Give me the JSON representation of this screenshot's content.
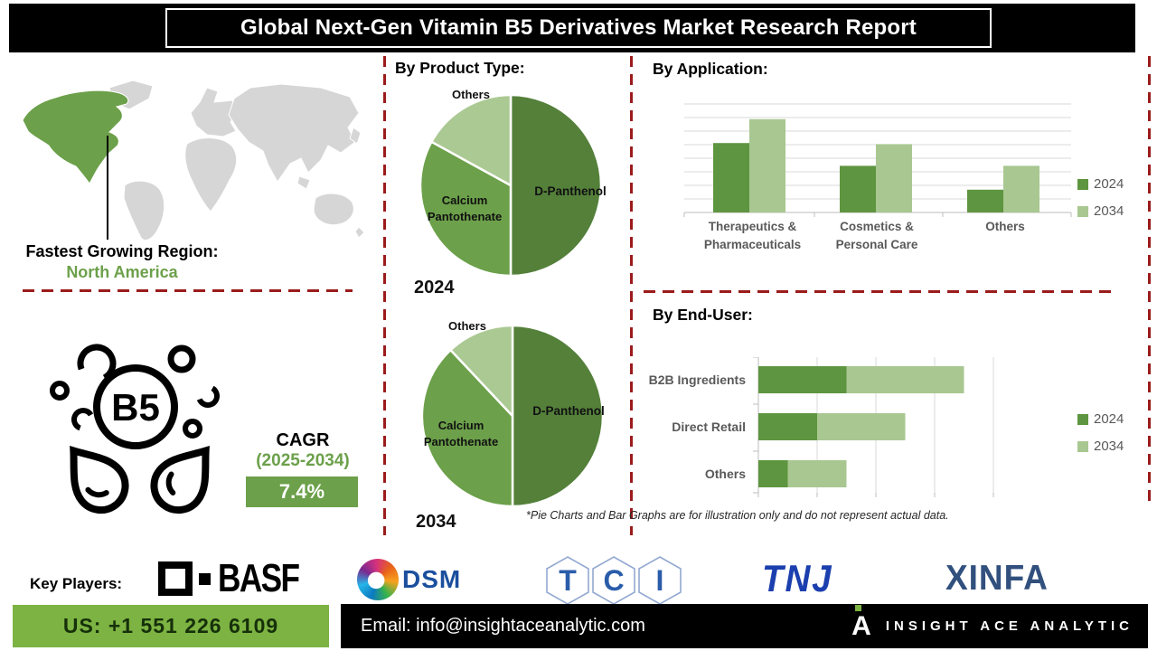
{
  "header": {
    "title": "Global Next-Gen Vitamin B5 Derivatives Market Research Report"
  },
  "map": {
    "icon": "world-map",
    "highlighted_region_color": "#6CA04A",
    "heading": "Fastest Growing Region:",
    "region": "North America"
  },
  "cagr": {
    "icon": "vitamin-b5-molecule-icon",
    "label": "CAGR",
    "period": "(2025-2034)",
    "value": "7.4%"
  },
  "sections": {
    "product_type": "By Product Type:",
    "application": "By Application:",
    "end_user": "By End-User:"
  },
  "chart_data": [
    {
      "id": "product_type_2024",
      "type": "pie",
      "year": "2024",
      "labels": [
        "D-Panthenol",
        "Calcium Pantothenate",
        "Others"
      ],
      "values": [
        50,
        33,
        17
      ],
      "colors": [
        "#54803A",
        "#6CA04A",
        "#ABC993"
      ]
    },
    {
      "id": "product_type_2034",
      "type": "pie",
      "year": "2034",
      "labels": [
        "D-Panthenol",
        "Calcium Pantothenate",
        "Others"
      ],
      "values": [
        50,
        38,
        12
      ],
      "colors": [
        "#54803A",
        "#6CA04A",
        "#ABC993"
      ]
    },
    {
      "id": "application",
      "type": "bar",
      "categories": [
        "Therapeutics & Pharmaceuticals",
        "Cosmetics & Personal Care",
        "Others"
      ],
      "series": [
        {
          "name": "2024",
          "color": "#5E9540",
          "values": [
            64,
            43,
            21
          ]
        },
        {
          "name": "2034",
          "color": "#A9C791",
          "values": [
            86,
            63,
            43
          ]
        }
      ],
      "ylim": [
        0,
        100
      ],
      "grid": true,
      "legend_position": "right"
    },
    {
      "id": "end_user",
      "type": "bar",
      "orientation": "horizontal",
      "stacked": true,
      "categories": [
        "B2B Ingredients",
        "Direct Retail",
        "Others"
      ],
      "series": [
        {
          "name": "2024",
          "color": "#5E9540",
          "values": [
            1.5,
            1.0,
            0.5
          ]
        },
        {
          "name": "2034",
          "color": "#A9C791",
          "values": [
            2.0,
            1.5,
            1.0
          ]
        }
      ],
      "xlim": [
        0,
        4
      ],
      "grid": true,
      "legend_position": "right"
    }
  ],
  "footnote": "*Pie Charts and Bar Graphs are for illustration only and do not represent actual data.",
  "key_players": {
    "label": "Key Players:",
    "companies": [
      {
        "name": "BASF"
      },
      {
        "name": "DSM"
      },
      {
        "name": "TCI",
        "letters": [
          "T",
          "C",
          "I"
        ]
      },
      {
        "name": "TNJ"
      },
      {
        "name": "XINFA"
      }
    ]
  },
  "footer": {
    "phone": "US: +1 551 226 6109",
    "email": "Email: info@insightaceanalytic.com",
    "brand": "INSIGHT ACE ANALYTIC"
  },
  "colors": {
    "dark_green_2024": "#5E9540",
    "light_green_2034": "#A9C791",
    "pie_dpanthenol": "#54803A",
    "pie_calcium_pantothenate": "#6CA04A",
    "pie_others": "#ABC993",
    "dashed_separator_red": "#9B1B1B",
    "footer_green": "#7CB342",
    "header_black": "#000000"
  }
}
